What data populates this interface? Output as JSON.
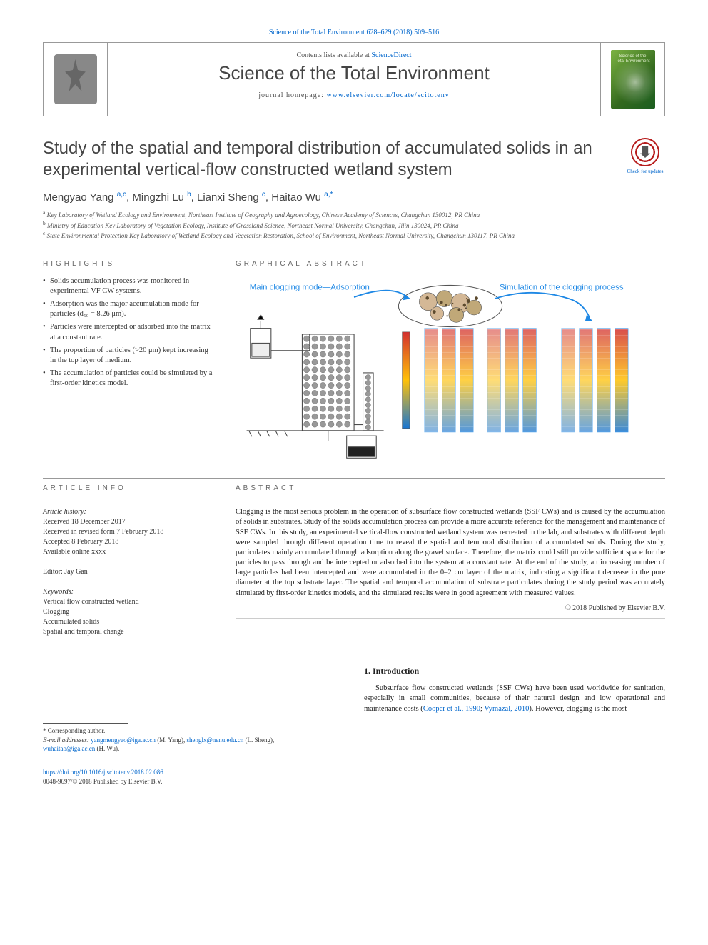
{
  "meta_top": "Science of the Total Environment 628–629 (2018) 509–516",
  "header": {
    "contents_prefix": "Contents lists available at ",
    "contents_link": "ScienceDirect",
    "journal": "Science of the Total Environment",
    "homepage_prefix": "journal homepage: ",
    "homepage_url": "www.elsevier.com/locate/scitotenv",
    "cover_line1": "Science of the",
    "cover_line2": "Total Environment"
  },
  "title": "Study of the spatial and temporal distribution of accumulated solids in an experimental vertical-flow constructed wetland system",
  "check_updates": "Check for updates",
  "authors_html": "Mengyao Yang <sup>a,c</sup>, Mingzhi Lu <sup>b</sup>, Lianxi Sheng <sup>c</sup>, Haitao Wu <sup>a,*</sup>",
  "affiliations": [
    {
      "sup": "a",
      "text": "Key Laboratory of Wetland Ecology and Environment, Northeast Institute of Geography and Agroecology, Chinese Academy of Sciences, Changchun 130012, PR China"
    },
    {
      "sup": "b",
      "text": "Ministry of Education Key Laboratory of Vegetation Ecology, Institute of Grassland Science, Northeast Normal University, Changchun, Jilin 130024, PR China"
    },
    {
      "sup": "c",
      "text": "State Environmental Protection Key Laboratory of Wetland Ecology and Vegetation Restoration, School of Environment, Northeast Normal University, Changchun 130117, PR China"
    }
  ],
  "highlights_head": "HIGHLIGHTS",
  "highlights": [
    "Solids accumulation process was monitored in experimental VF CW systems.",
    "Adsorption was the major accumulation mode for particles (d₅₀ = 8.26 μm).",
    "Particles were intercepted or adsorbed into the matrix at a constant rate.",
    "The proportion of particles (>20 μm) kept increasing in the top layer of medium.",
    "The accumulation of particles could be simulated by a first-order kinetics model."
  ],
  "graphical_head": "GRAPHICAL ABSTRACT",
  "graphical": {
    "left_label": "Main clogging mode—Adsorption",
    "right_label": "Simulation of the clogging process",
    "label_color": "#1e88e5",
    "colors": {
      "apparatus_stroke": "#444444",
      "apparatus_fill": "#eeeeee",
      "gravel_fill": "#999999",
      "dark_fill": "#222222",
      "tube_stroke": "#555555",
      "particle1": "#d4b896",
      "particle2": "#c0a878",
      "particle_small": "#5c4a2e",
      "sim_border": "#1e88e5",
      "sim_grad_top": "#d32f2f",
      "sim_grad_mid": "#ffc107",
      "sim_grad_bot": "#1976d2",
      "legend_top": "#b71c1c",
      "legend_bot": "#0d47a1"
    }
  },
  "article_info_head": "ARTICLE INFO",
  "article_history_label": "Article history:",
  "article_history": [
    "Received 18 December 2017",
    "Received in revised form 7 February 2018",
    "Accepted 8 February 2018",
    "Available online xxxx"
  ],
  "editor_label": "Editor:",
  "editor": "Jay Gan",
  "keywords_label": "Keywords:",
  "keywords": [
    "Vertical flow constructed wetland",
    "Clogging",
    "Accumulated solids",
    "Spatial and temporal change"
  ],
  "abstract_head": "ABSTRACT",
  "abstract": "Clogging is the most serious problem in the operation of subsurface flow constructed wetlands (SSF CWs) and is caused by the accumulation of solids in substrates. Study of the solids accumulation process can provide a more accurate reference for the management and maintenance of SSF CWs. In this study, an experimental vertical-flow constructed wetland system was recreated in the lab, and substrates with different depth were sampled through different operation time to reveal the spatial and temporal distribution of accumulated solids. During the study, particulates mainly accumulated through adsorption along the gravel surface. Therefore, the matrix could still provide sufficient space for the particles to pass through and be intercepted or adsorbed into the system at a constant rate. At the end of the study, an increasing number of large particles had been intercepted and were accumulated in the 0–2 cm layer of the matrix, indicating a significant decrease in the pore diameter at the top substrate layer. The spatial and temporal accumulation of substrate particulates during the study period was accurately simulated by first-order kinetics models, and the simulated results were in good agreement with measured values.",
  "copyright": "© 2018 Published by Elsevier B.V.",
  "intro_head": "1. Introduction",
  "intro_text_pre": "Subsurface flow constructed wetlands (SSF CWs) have been used worldwide for sanitation, especially in small communities, because of their natural design and low operational and maintenance costs (",
  "intro_link1": "Cooper et al., 1990",
  "intro_sep": "; ",
  "intro_link2": "Vymazal, 2010",
  "intro_text_post": "). However, clogging is the most",
  "corr_label": "* Corresponding author.",
  "email_label": "E-mail addresses:",
  "emails": [
    {
      "addr": "yangmengyao@iga.ac.cn",
      "who": "(M. Yang)"
    },
    {
      "addr": "shenglx@nenu.edu.cn",
      "who": "(L. Sheng)"
    },
    {
      "addr": "wuhaitao@iga.ac.cn",
      "who": "(H. Wu)"
    }
  ],
  "doi": "https://doi.org/10.1016/j.scitotenv.2018.02.086",
  "issn_line": "0048-9697/© 2018 Published by Elsevier B.V."
}
